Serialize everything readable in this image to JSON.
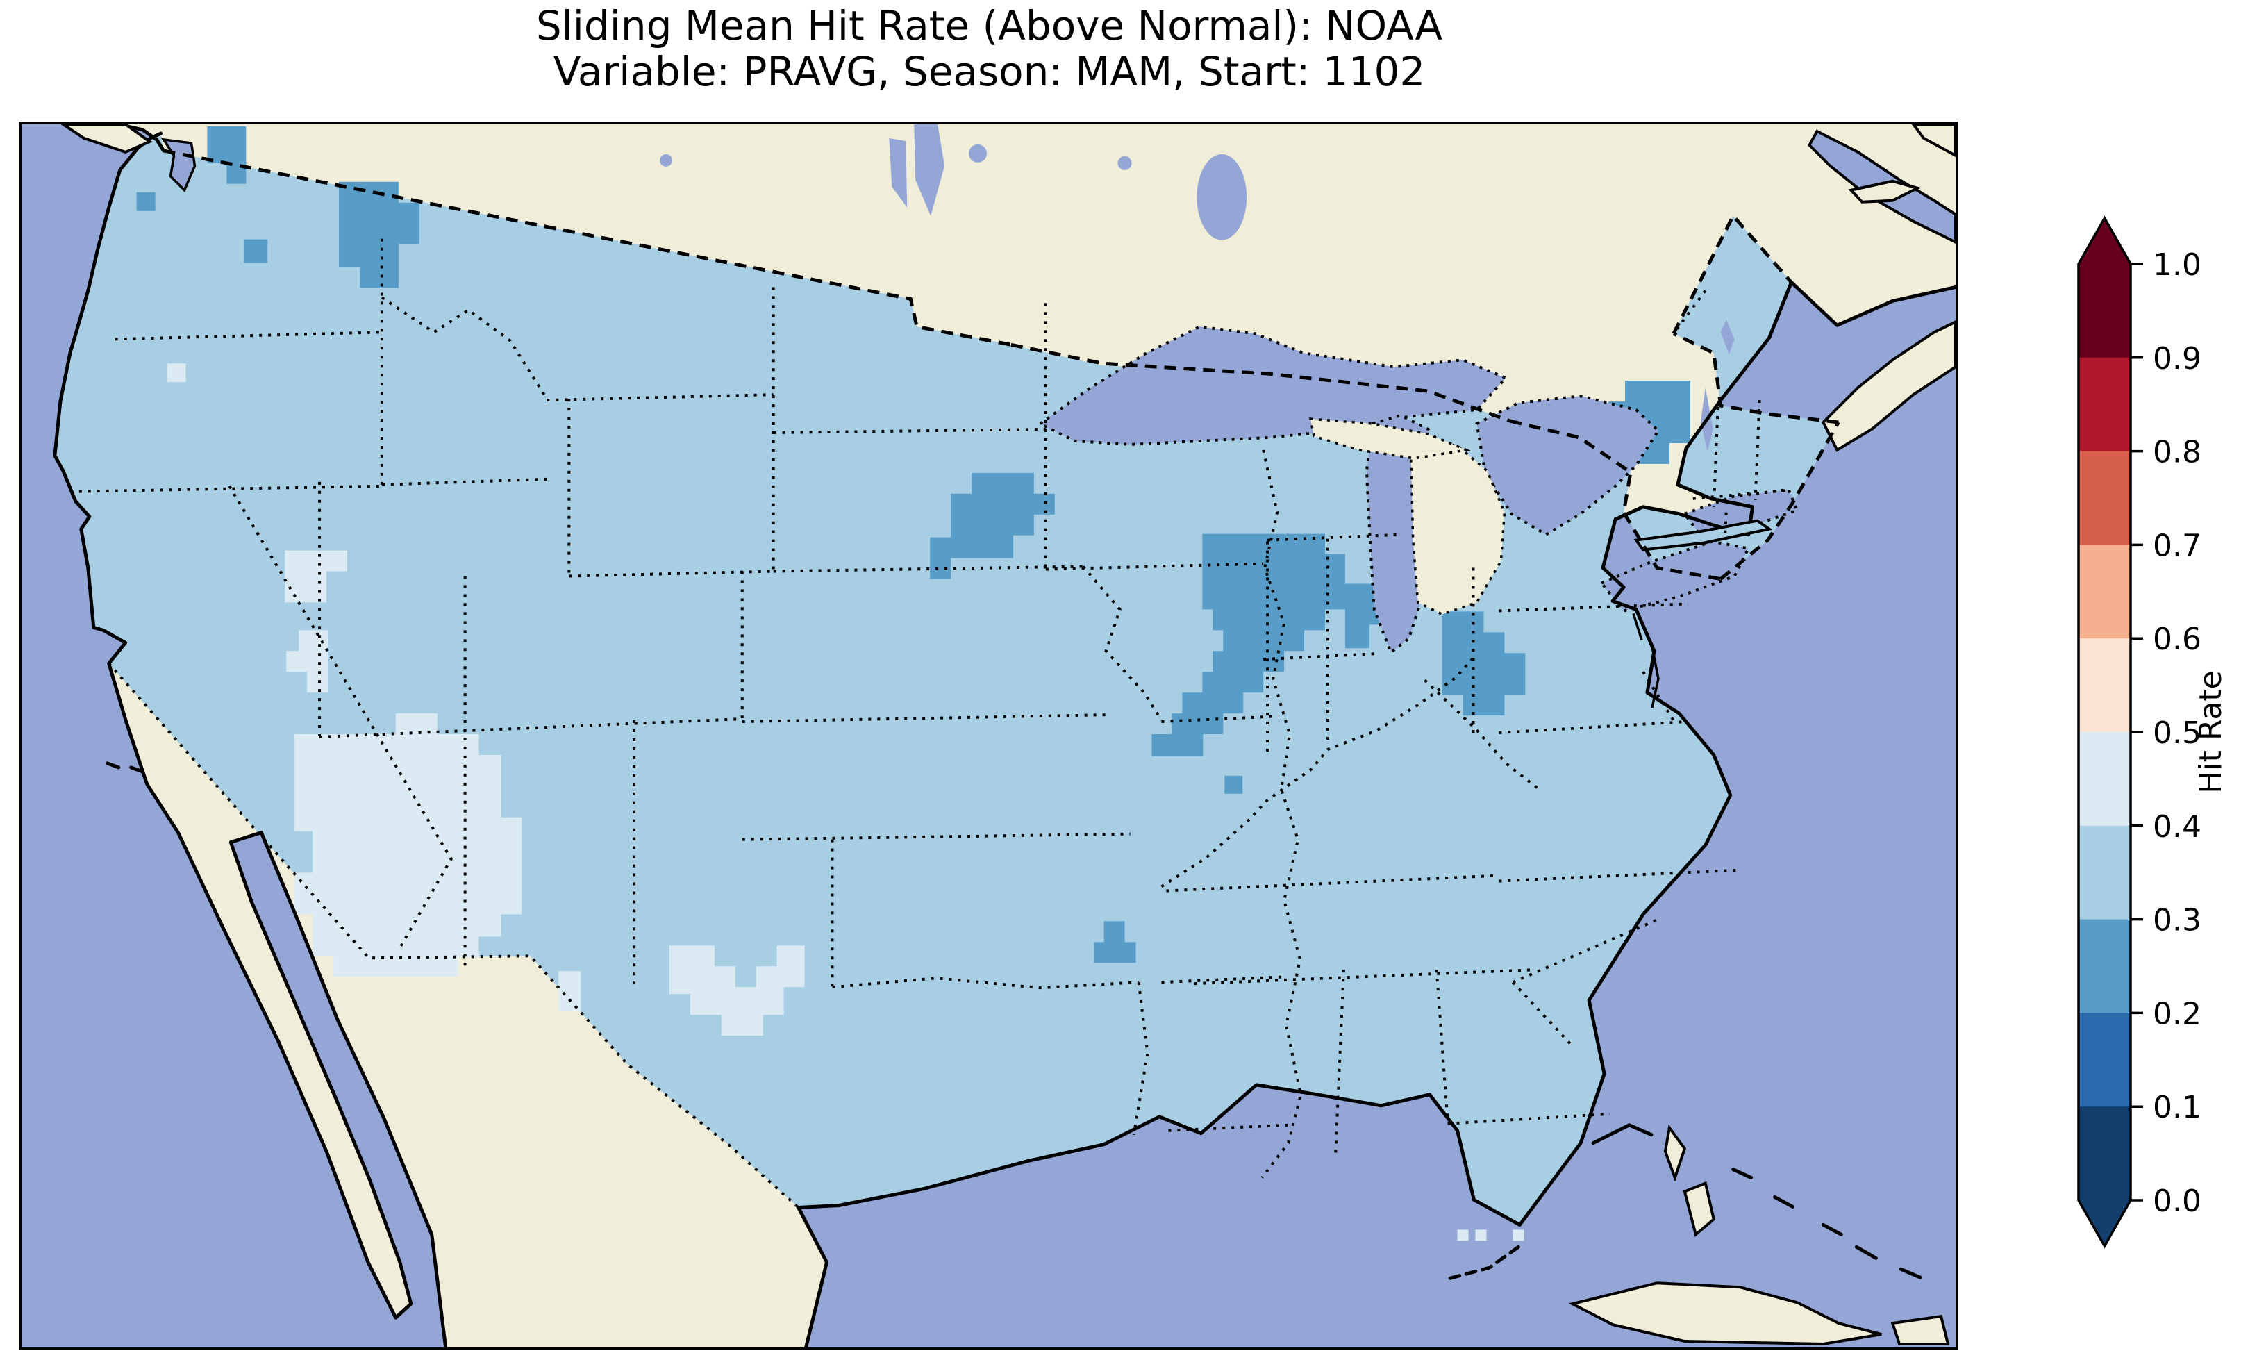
{
  "figure": {
    "title_line1": "Sliding Mean Hit Rate (Above Normal): NOAA",
    "title_line2": "Variable: PRAVG, Season: MAM, Start: 1102",
    "background": "#ffffff"
  },
  "map": {
    "colors": {
      "ocean": "#94a6d5",
      "land": "#f0eed9",
      "hit_rate_0_3_to_0_4": "#a8cee4",
      "hit_rate_0_2_to_0_3": "#579dc8",
      "hit_rate_0_4_to_0_5": "#dcebf3",
      "coastline": "#000000"
    },
    "projection_note": "Contiguous United States with Canada, Mexico, Great Lakes, Atlantic and Pacific oceans",
    "border_styles": {
      "coastline": "solid black",
      "country_borders": "dashed black",
      "state_borders": "dotted black",
      "lake_shorelines": "dotted black"
    }
  },
  "colorbar": {
    "label": "Hit Rate",
    "orientation": "vertical",
    "extend": "both",
    "over_color": "#67001f",
    "under_color": "#123f6d",
    "ticks": [
      "1.0",
      "0.9",
      "0.8",
      "0.7",
      "0.6",
      "0.5",
      "0.4",
      "0.3",
      "0.2",
      "0.1",
      "0.0"
    ],
    "bins": [
      {
        "range": "0.9-1.0",
        "color": "#67001f"
      },
      {
        "range": "0.8-0.9",
        "color": "#b2182b"
      },
      {
        "range": "0.7-0.8",
        "color": "#d6604d"
      },
      {
        "range": "0.6-0.7",
        "color": "#f5b08f"
      },
      {
        "range": "0.5-0.6",
        "color": "#fbe3d3"
      },
      {
        "range": "0.4-0.5",
        "color": "#dcebf3"
      },
      {
        "range": "0.3-0.4",
        "color": "#a8cee4"
      },
      {
        "range": "0.2-0.3",
        "color": "#579dc8"
      },
      {
        "range": "0.1-0.2",
        "color": "#2a6bad"
      },
      {
        "range": "0.0-0.1",
        "color": "#123f6d"
      }
    ]
  },
  "chart_data": {
    "type": "heatmap",
    "subtype": "geographic-gridded-choropleth",
    "title": "Sliding Mean Hit Rate (Above Normal): NOAA",
    "subtitle": "Variable: PRAVG, Season: MAM, Start: 1102",
    "colorbar_label": "Hit Rate",
    "value_range": [
      0.0,
      1.0
    ],
    "tick_step": 0.1,
    "legend_position": "right",
    "base_field_value": "0.3-0.4 over most of the contiguous United States",
    "regions": [
      {
        "area": "Most of contiguous US",
        "hit_rate": "0.3-0.4"
      },
      {
        "area": "Arizona, western New Mexico, southern Utah",
        "hit_rate": "0.4-0.5"
      },
      {
        "area": "Western Utah / Nevada border cells",
        "hit_rate": "0.4-0.5"
      },
      {
        "area": "West Texas patch",
        "hit_rate": "0.4-0.5"
      },
      {
        "area": "Scattered cells offshore southwest of Florida",
        "hit_rate": "0.4-0.5"
      },
      {
        "area": "Northwest Washington (Puget Sound)",
        "hit_rate": "0.2-0.3"
      },
      {
        "area": "Eastern Idaho / southwest Montana",
        "hit_rate": "0.2-0.3"
      },
      {
        "area": "Northeast Nebraska / southeast South Dakota",
        "hit_rate": "0.2-0.3"
      },
      {
        "area": "Indiana, western Ohio, diagonal band into Kentucky",
        "hit_rate": "0.2-0.3"
      },
      {
        "area": "West Virginia / Virginia patch",
        "hit_rate": "0.2-0.3"
      },
      {
        "area": "Vermont / New Hampshire / northern Massachusetts",
        "hit_rate": "0.2-0.3"
      },
      {
        "area": "Small cells in eastern Arkansas",
        "hit_rate": "0.2-0.3"
      },
      {
        "area": "Canada, Mexico, Michigan mitten",
        "hit_rate": "no data (land background)"
      }
    ]
  }
}
